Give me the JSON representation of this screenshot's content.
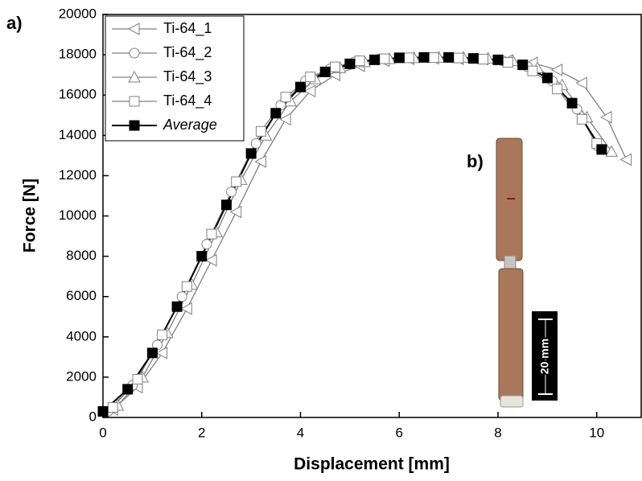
{
  "chart_data": {
    "type": "line",
    "xlabel": "Displacement [mm]",
    "ylabel": "Force [N]",
    "panel_labels": [
      "a)",
      "b)"
    ],
    "inset_scale_label": "20 mm",
    "xlim": [
      0,
      10.9
    ],
    "ylim": [
      0,
      20000
    ],
    "xticks": [
      0,
      2,
      4,
      6,
      8,
      10
    ],
    "yticks": [
      0,
      2000,
      4000,
      6000,
      8000,
      10000,
      12000,
      14000,
      16000,
      18000,
      20000
    ],
    "legend": "upper left",
    "series": [
      {
        "name": "Ti-64_1",
        "color": "#808080",
        "marker": "triangle-left",
        "x": [
          0.2,
          0.7,
          1.2,
          1.7,
          2.2,
          2.7,
          3.2,
          3.7,
          4.2,
          4.7,
          5.2,
          5.7,
          6.2,
          6.7,
          7.2,
          7.7,
          8.2,
          8.7,
          9.2,
          9.7,
          10.2,
          10.6
        ],
        "values": [
          400,
          1500,
          3200,
          5400,
          7800,
          10200,
          12700,
          14800,
          16200,
          17000,
          17450,
          17700,
          17800,
          17820,
          17800,
          17780,
          17720,
          17600,
          17250,
          16600,
          14900,
          12800
        ]
      },
      {
        "name": "Ti-64_2",
        "color": "#808080",
        "marker": "circle",
        "x": [
          0.1,
          0.6,
          1.1,
          1.6,
          2.1,
          2.6,
          3.1,
          3.6,
          4.1,
          4.6,
          5.1,
          5.6,
          6.1,
          6.6,
          7.1,
          7.6,
          8.1,
          8.6,
          9.1,
          9.6,
          10.0
        ],
        "values": [
          300,
          1600,
          3600,
          6000,
          8600,
          11200,
          13600,
          15500,
          16700,
          17300,
          17650,
          17800,
          17850,
          17860,
          17850,
          17800,
          17700,
          17400,
          16700,
          15300,
          13500
        ]
      },
      {
        "name": "Ti-64_3",
        "color": "#808080",
        "marker": "triangle-up",
        "x": [
          0.3,
          0.8,
          1.3,
          1.8,
          2.3,
          2.8,
          3.3,
          3.8,
          4.3,
          4.8,
          5.3,
          5.8,
          6.3,
          6.8,
          7.3,
          7.8,
          8.3,
          8.8,
          9.3,
          9.8,
          10.3
        ],
        "values": [
          600,
          2000,
          4200,
          6600,
          9200,
          11800,
          14000,
          15700,
          16800,
          17350,
          17650,
          17800,
          17850,
          17870,
          17870,
          17820,
          17700,
          17350,
          16500,
          14900,
          13200
        ]
      },
      {
        "name": "Ti-64_4",
        "color": "#808080",
        "marker": "square",
        "x": [
          0.2,
          0.7,
          1.2,
          1.7,
          2.2,
          2.7,
          3.2,
          3.7,
          4.2,
          4.7,
          5.2,
          5.7,
          6.2,
          6.7,
          7.2,
          7.7,
          8.2,
          8.7,
          9.2,
          9.7,
          10.0
        ],
        "values": [
          500,
          1900,
          4100,
          6500,
          9100,
          11700,
          14200,
          15900,
          16900,
          17400,
          17700,
          17800,
          17850,
          17860,
          17840,
          17780,
          17620,
          17200,
          16300,
          14800,
          13600
        ]
      },
      {
        "name": "Average",
        "color": "#000000",
        "marker": "square-filled",
        "x": [
          0,
          0.5,
          1,
          1.5,
          2,
          2.5,
          3,
          3.5,
          4,
          4.5,
          5,
          5.5,
          6,
          6.5,
          7,
          7.5,
          8,
          8.5,
          9,
          9.5,
          10.1
        ],
        "values": [
          300,
          1400,
          3200,
          5500,
          8000,
          10550,
          13100,
          15100,
          16400,
          17150,
          17550,
          17750,
          17850,
          17870,
          17870,
          17820,
          17750,
          17500,
          16850,
          15600,
          13300
        ]
      }
    ]
  }
}
